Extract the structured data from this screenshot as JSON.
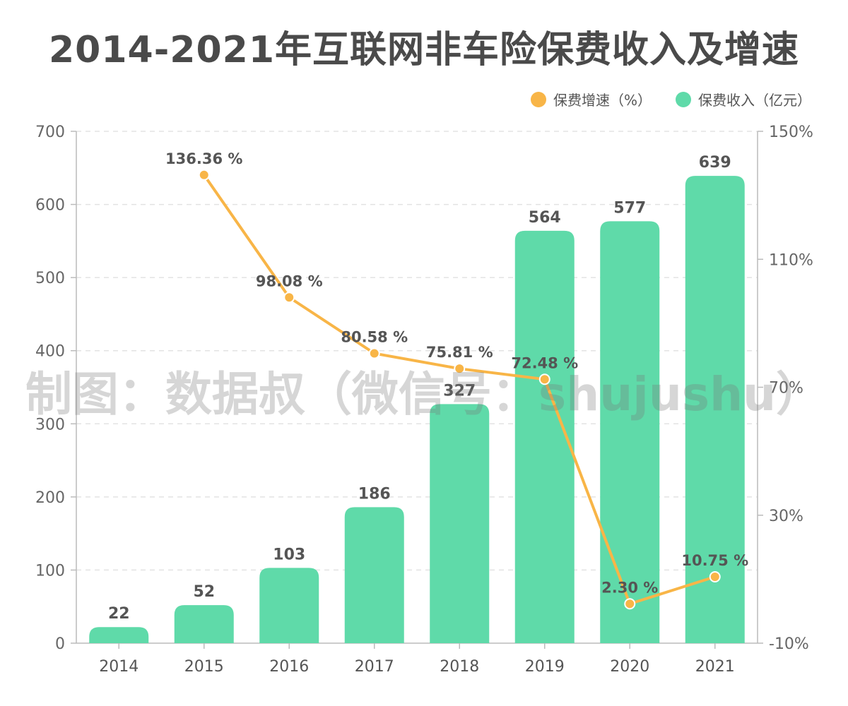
{
  "title": "2014-2021年互联网非车险保费收入及增速",
  "watermark": "制图：数据叔（微信号：shujushu）",
  "colors": {
    "bar": "#5fdaa9",
    "line": "#f8b547",
    "text": "#555555",
    "axis": "#bbbbbb",
    "grid": "#e3e3e3"
  },
  "legend": [
    {
      "label": "保费增速（%）",
      "color": "#f8b547"
    },
    {
      "label": "保费收入（亿元）",
      "color": "#5fdaa9"
    }
  ],
  "chart_data": {
    "type": "bar+line",
    "categories": [
      "2014",
      "2015",
      "2016",
      "2017",
      "2018",
      "2019",
      "2020",
      "2021"
    ],
    "series": [
      {
        "name": "保费收入（亿元）",
        "type": "bar",
        "axis": "left",
        "values": [
          22,
          52,
          103,
          186,
          327,
          564,
          577,
          639
        ],
        "labels": [
          "22",
          "52",
          "103",
          "186",
          "327",
          "564",
          "577",
          "639"
        ]
      },
      {
        "name": "保费增速（%）",
        "type": "line",
        "axis": "right",
        "values": [
          null,
          136.36,
          98.08,
          80.58,
          75.81,
          72.48,
          2.3,
          10.75
        ],
        "labels": [
          null,
          "136.36 %",
          "98.08 %",
          "80.58 %",
          "75.81 %",
          "72.48 %",
          "2.30 %",
          "10.75 %"
        ]
      }
    ],
    "y_left": {
      "min": 0,
      "max": 700,
      "ticks": [
        0,
        100,
        200,
        300,
        400,
        500,
        600,
        700
      ],
      "tick_labels": [
        "0",
        "100",
        "200",
        "300",
        "400",
        "500",
        "600",
        "700"
      ]
    },
    "y_right": {
      "min": -10,
      "max": 150,
      "ticks": [
        -10,
        30,
        70,
        110,
        150
      ],
      "tick_labels": [
        "-10%",
        "30%",
        "70%",
        "110%",
        "150%"
      ]
    },
    "grid": true,
    "legend_position": "top-right"
  }
}
